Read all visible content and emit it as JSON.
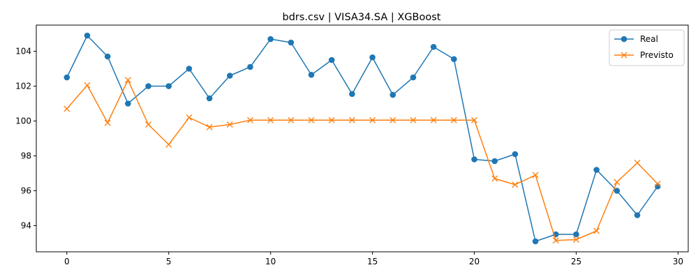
{
  "chart_data": {
    "type": "line",
    "title": "bdrs.csv | VISA34.SA | XGBoost",
    "xlabel": "",
    "ylabel": "",
    "xlim": [
      -1.5,
      30.5
    ],
    "ylim": [
      92.5,
      105.5
    ],
    "xticks": [
      0,
      5,
      10,
      15,
      20,
      25,
      30
    ],
    "yticks": [
      94,
      96,
      98,
      100,
      102,
      104
    ],
    "grid": false,
    "legend_position": "top-right",
    "x": [
      0,
      1,
      2,
      3,
      4,
      5,
      6,
      7,
      8,
      9,
      10,
      11,
      12,
      13,
      14,
      15,
      16,
      17,
      18,
      19,
      20,
      21,
      22,
      23,
      24,
      25,
      26,
      27,
      28,
      29
    ],
    "series": [
      {
        "name": "Real",
        "color": "#1f77b4",
        "marker": "circle",
        "values": [
          102.5,
          104.9,
          103.7,
          101.0,
          102.0,
          102.0,
          103.0,
          101.3,
          102.6,
          103.1,
          104.7,
          104.5,
          102.65,
          103.5,
          101.55,
          103.65,
          101.5,
          102.5,
          104.25,
          103.55,
          97.8,
          97.7,
          98.1,
          93.1,
          93.5,
          93.5,
          97.2,
          96.0,
          94.6,
          96.25
        ]
      },
      {
        "name": "Previsto",
        "color": "#ff7f0e",
        "marker": "x",
        "values": [
          100.7,
          102.05,
          99.9,
          102.35,
          99.8,
          98.65,
          100.2,
          99.65,
          99.8,
          100.05,
          100.05,
          100.05,
          100.05,
          100.05,
          100.05,
          100.05,
          100.05,
          100.05,
          100.05,
          100.05,
          100.05,
          96.7,
          96.35,
          96.9,
          93.15,
          93.2,
          93.7,
          96.5,
          97.6,
          96.4
        ]
      }
    ]
  }
}
